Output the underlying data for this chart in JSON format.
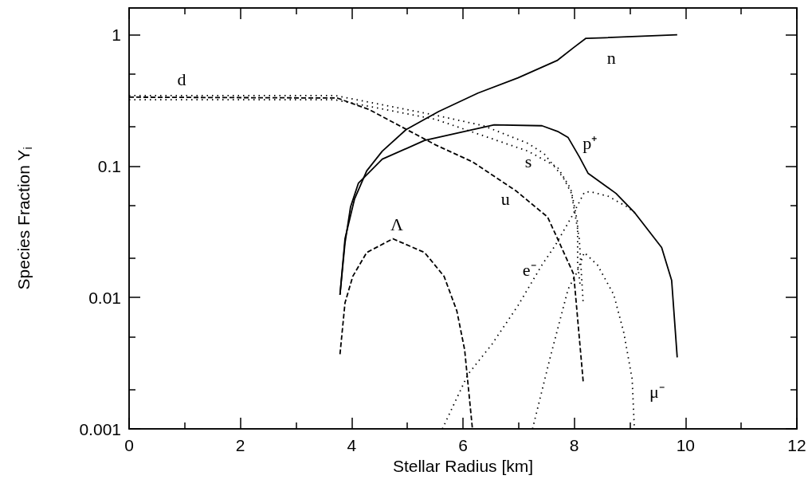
{
  "chart_data": {
    "type": "line",
    "xlabel": "Stellar Radius [km]",
    "ylabel": "Species Fraction Y$_{i}$",
    "log": "y",
    "grid": false,
    "marker": "none",
    "xlim": [
      0,
      12
    ],
    "ylim": [
      0.001,
      1.6
    ],
    "xticks": [
      0,
      {
        "value": 1,
        "label": null
      },
      2,
      {
        "value": 3,
        "label": null
      },
      4,
      {
        "value": 5,
        "label": null
      },
      6,
      {
        "value": 7,
        "label": null
      },
      8,
      {
        "value": 9,
        "label": null
      },
      10,
      {
        "value": 11,
        "label": null
      },
      12
    ],
    "yticks": [
      0.001,
      {
        "value": 0.002,
        "label": null
      },
      {
        "value": 0.005,
        "label": null
      },
      0.01,
      {
        "value": 0.02,
        "label": null
      },
      {
        "value": 0.05,
        "label": null
      },
      0.1,
      {
        "value": 0.2,
        "label": null
      },
      {
        "value": 0.5,
        "label": null
      },
      1
    ],
    "series": [
      {
        "name": "n",
        "color": "#000000",
        "line_style": "solid",
        "x": [
          3.79,
          3.88,
          4.05,
          4.27,
          4.55,
          4.98,
          5.56,
          6.27,
          6.99,
          7.7,
          7.99,
          8.21,
          8.56,
          9.85
        ],
        "values": [
          0.0105,
          0.028,
          0.056,
          0.092,
          0.13,
          0.19,
          0.26,
          0.36,
          0.47,
          0.64,
          0.8,
          0.94,
          0.95,
          1.0
        ]
      },
      {
        "name": "p⁺",
        "color": "#000000",
        "line_style": "solid",
        "x": [
          3.79,
          3.88,
          3.98,
          4.12,
          4.55,
          5.31,
          6.56,
          7.42,
          7.7,
          7.89,
          8.09,
          8.25,
          8.75,
          9.09,
          9.57,
          9.75,
          9.85
        ],
        "values": [
          0.0105,
          0.026,
          0.049,
          0.074,
          0.113,
          0.157,
          0.206,
          0.203,
          0.184,
          0.165,
          0.118,
          0.088,
          0.062,
          0.044,
          0.024,
          0.0135,
          0.0035
        ]
      },
      {
        "name": "d",
        "color": "#000000",
        "line_style": "dotted",
        "x": [
          0,
          3.7,
          5.51,
          6.37,
          7.17,
          7.46,
          7.8,
          7.95,
          8.09,
          8.16
        ],
        "values": [
          0.345,
          0.345,
          0.244,
          0.203,
          0.149,
          0.124,
          0.082,
          0.062,
          0.028,
          0.0091
        ]
      },
      {
        "name": "s",
        "color": "#000000",
        "line_style": "dotted",
        "x": [
          0,
          3.7,
          5.51,
          7.17,
          7.7,
          7.92,
          7.95,
          8.06,
          8.06,
          8.11
        ],
        "values": [
          0.32,
          0.32,
          0.227,
          0.13,
          0.098,
          0.069,
          0.064,
          0.037,
          0.018,
          0.012
        ]
      },
      {
        "name": "u",
        "color": "#000000",
        "line_style": "dashed",
        "x": [
          0,
          3.74,
          4.31,
          5.51,
          6.17,
          6.95,
          7.52,
          7.7,
          7.99,
          8.16
        ],
        "values": [
          0.335,
          0.33,
          0.27,
          0.145,
          0.108,
          0.065,
          0.041,
          0.028,
          0.015,
          0.0023
        ]
      },
      {
        "name": "Λ",
        "color": "#000000",
        "line_style": "dashed",
        "x": [
          3.79,
          3.88,
          4.02,
          4.27,
          4.74,
          5.31,
          5.66,
          5.89,
          6.03,
          6.17
        ],
        "values": [
          0.0037,
          0.0091,
          0.0145,
          0.022,
          0.028,
          0.022,
          0.0145,
          0.0079,
          0.004,
          0.001
        ]
      },
      {
        "name": "e⁻",
        "color": "#000000",
        "line_style": "dotted",
        "x": [
          5.63,
          6.09,
          6.52,
          6.99,
          7.42,
          7.66,
          7.95,
          8.18,
          8.28,
          8.61,
          8.95,
          9.09
        ],
        "values": [
          0.001,
          0.0026,
          0.0044,
          0.0087,
          0.0177,
          0.025,
          0.041,
          0.063,
          0.064,
          0.059,
          0.049,
          0.044
        ]
      },
      {
        "name": "μ⁻",
        "color": "#000000",
        "line_style": "dotted",
        "x": [
          7.25,
          7.56,
          7.75,
          7.89,
          8.03,
          8.18,
          8.42,
          8.71,
          8.89,
          9.04,
          9.08
        ],
        "values": [
          0.001,
          0.0034,
          0.0069,
          0.0116,
          0.015,
          0.022,
          0.0176,
          0.0105,
          0.0054,
          0.0024,
          0.001
        ]
      }
    ]
  }
}
